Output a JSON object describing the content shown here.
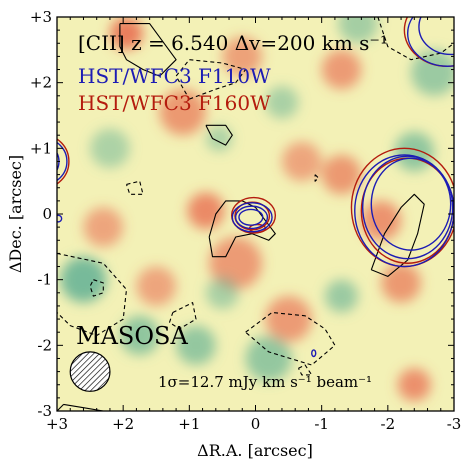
{
  "chart_data": {
    "type": "contour-map",
    "xlabel": "ΔR.A. [arcsec]",
    "ylabel": "ΔDec. [arcsec]",
    "xlim": [
      3,
      -3
    ],
    "ylim": [
      -3,
      3
    ],
    "x_ticks": [
      {
        "value": 3,
        "label": "+3"
      },
      {
        "value": 2,
        "label": "+2"
      },
      {
        "value": 1,
        "label": "+1"
      },
      {
        "value": 0,
        "label": "0"
      },
      {
        "value": -1,
        "label": "-1"
      },
      {
        "value": -2,
        "label": "-2"
      },
      {
        "value": -3,
        "label": "-3"
      }
    ],
    "y_ticks": [
      {
        "value": 3,
        "label": "+3"
      },
      {
        "value": 2,
        "label": "+2"
      },
      {
        "value": 1,
        "label": "+1"
      },
      {
        "value": 0,
        "label": "0"
      },
      {
        "value": -1,
        "label": "-1"
      },
      {
        "value": -2,
        "label": "-2"
      },
      {
        "value": -3,
        "label": "-3"
      }
    ],
    "legend": [
      {
        "text": "[CII] z = 6.540 Δv=200 km s⁻¹",
        "color": "#000000"
      },
      {
        "text": "HST/WFC3 F110W",
        "color": "#1c1cb4"
      },
      {
        "text": "HST/WFC3 F160W",
        "color": "#b41c0e"
      }
    ],
    "survey_label": "MASOSA",
    "noise_label": "1σ=12.7 mJy km s⁻¹ beam⁻¹",
    "colormap": {
      "low": "#58ad92",
      "mid": "#f3f1b6",
      "high": "#e8664b"
    },
    "colors": {
      "cii": "#000000",
      "f110w": "#1c1cb4",
      "f160w": "#b41c0e"
    },
    "beam": {
      "center": [
        2.5,
        -2.4
      ],
      "bmaj": 0.6,
      "bmin": 0.6
    },
    "blobs": [
      {
        "x": 1.95,
        "y": 2.75,
        "r": 0.25,
        "v": 0.9
      },
      {
        "x": 1.1,
        "y": 1.55,
        "r": 0.35,
        "v": 0.6
      },
      {
        "x": 0.75,
        "y": 0.05,
        "r": 0.28,
        "v": 0.75
      },
      {
        "x": 0.3,
        "y": -0.75,
        "r": 0.4,
        "v": 0.55
      },
      {
        "x": -0.5,
        "y": -1.6,
        "r": 0.35,
        "v": 0.55
      },
      {
        "x": -1.3,
        "y": 0.6,
        "r": 0.3,
        "v": 0.6
      },
      {
        "x": -1.9,
        "y": -0.1,
        "r": 0.3,
        "v": 0.65
      },
      {
        "x": -2.2,
        "y": -1.05,
        "r": 0.3,
        "v": 0.6
      },
      {
        "x": -2.4,
        "y": -2.6,
        "r": 0.25,
        "v": 0.7
      },
      {
        "x": -1.3,
        "y": 2.2,
        "r": 0.3,
        "v": 0.55
      },
      {
        "x": 0.2,
        "y": 2.4,
        "r": 0.3,
        "v": 0.5
      },
      {
        "x": -0.7,
        "y": 0.8,
        "r": 0.3,
        "v": 0.45
      },
      {
        "x": 1.5,
        "y": -1.1,
        "r": 0.3,
        "v": 0.45
      },
      {
        "x": 2.3,
        "y": -0.2,
        "r": 0.3,
        "v": 0.45
      },
      {
        "x": 2.6,
        "y": -1.0,
        "r": 0.35,
        "v": -0.85
      },
      {
        "x": 1.75,
        "y": -1.85,
        "r": 0.3,
        "v": -0.6
      },
      {
        "x": 0.9,
        "y": -2.0,
        "r": 0.3,
        "v": -0.55
      },
      {
        "x": -0.2,
        "y": -2.2,
        "r": 0.35,
        "v": -0.55
      },
      {
        "x": -2.4,
        "y": 0.95,
        "r": 0.3,
        "v": -0.6
      },
      {
        "x": -2.7,
        "y": 2.15,
        "r": 0.35,
        "v": -0.5
      },
      {
        "x": -1.3,
        "y": -1.25,
        "r": 0.25,
        "v": -0.5
      },
      {
        "x": -0.4,
        "y": 1.7,
        "r": 0.25,
        "v": -0.35
      },
      {
        "x": -1.55,
        "y": 2.9,
        "r": 0.3,
        "v": -0.4
      },
      {
        "x": 0.55,
        "y": 1.15,
        "r": 0.2,
        "v": -0.3
      },
      {
        "x": 0.5,
        "y": -1.2,
        "r": 0.25,
        "v": -0.35
      },
      {
        "x": 2.2,
        "y": 1.0,
        "r": 0.3,
        "v": -0.3
      }
    ],
    "cii_contours": [
      {
        "style": "solid",
        "points": [
          [
            2.05,
            2.9
          ],
          [
            1.6,
            2.9
          ],
          [
            1.2,
            2.35
          ],
          [
            1.45,
            2.1
          ],
          [
            1.7,
            2.2
          ],
          [
            1.95,
            2.35
          ],
          [
            2.05,
            2.55
          ],
          [
            2.05,
            2.9
          ]
        ]
      },
      {
        "style": "solid",
        "points": [
          [
            2.9,
            -2.9
          ],
          [
            2.6,
            -2.95
          ],
          [
            2.3,
            -3.0
          ],
          [
            3.0,
            -3.0
          ],
          [
            2.9,
            -2.9
          ]
        ]
      },
      {
        "style": "solid",
        "points": [
          [
            0.75,
            1.35
          ],
          [
            0.65,
            1.15
          ],
          [
            0.45,
            1.05
          ],
          [
            0.35,
            1.2
          ],
          [
            0.45,
            1.35
          ],
          [
            0.75,
            1.35
          ]
        ]
      },
      {
        "style": "solid",
        "points": [
          [
            0.7,
            -0.35
          ],
          [
            0.6,
            0.0
          ],
          [
            0.45,
            0.2
          ],
          [
            0.2,
            0.2
          ],
          [
            0.0,
            0.1
          ],
          [
            -0.15,
            -0.1
          ],
          [
            -0.3,
            -0.3
          ],
          [
            -0.2,
            -0.4
          ],
          [
            0.05,
            -0.3
          ],
          [
            0.3,
            -0.35
          ],
          [
            0.45,
            -0.65
          ],
          [
            0.65,
            -0.65
          ],
          [
            0.7,
            -0.35
          ]
        ]
      },
      {
        "style": "solid",
        "points": [
          [
            -1.75,
            -0.85
          ],
          [
            -1.95,
            -0.3
          ],
          [
            -2.2,
            0.1
          ],
          [
            -2.4,
            0.3
          ],
          [
            -2.55,
            0.15
          ],
          [
            -2.45,
            -0.3
          ],
          [
            -2.3,
            -0.7
          ],
          [
            -2.0,
            -0.95
          ],
          [
            -1.75,
            -0.85
          ]
        ]
      },
      {
        "style": "dashed",
        "points": [
          [
            1.0,
            1.75
          ],
          [
            0.6,
            1.9
          ],
          [
            0.3,
            2.0
          ],
          [
            0.15,
            2.2
          ],
          [
            0.5,
            2.3
          ],
          [
            1.0,
            2.35
          ],
          [
            1.2,
            2.1
          ],
          [
            1.0,
            1.75
          ]
        ]
      },
      {
        "style": "dashed",
        "points": [
          [
            -1.85,
            3.0
          ],
          [
            -2.0,
            2.55
          ],
          [
            -2.35,
            2.35
          ],
          [
            -2.8,
            2.45
          ],
          [
            -3.0,
            2.6
          ]
        ]
      },
      {
        "style": "dashed",
        "points": [
          [
            1.95,
            0.45
          ],
          [
            1.75,
            0.5
          ],
          [
            1.7,
            0.3
          ],
          [
            1.9,
            0.3
          ],
          [
            1.95,
            0.45
          ]
        ]
      },
      {
        "style": "dashed",
        "points": [
          [
            -0.9,
            0.6
          ],
          [
            -0.95,
            0.55
          ],
          [
            -0.9,
            0.5
          ],
          [
            -0.9,
            0.6
          ]
        ]
      },
      {
        "style": "dashed",
        "points": [
          [
            3.0,
            -0.6
          ],
          [
            2.3,
            -0.75
          ],
          [
            1.95,
            -1.15
          ],
          [
            2.0,
            -1.6
          ],
          [
            2.4,
            -1.85
          ],
          [
            2.8,
            -1.7
          ],
          [
            3.0,
            -1.5
          ]
        ]
      },
      {
        "style": "dashed",
        "points": [
          [
            2.45,
            -1.0
          ],
          [
            2.3,
            -1.05
          ],
          [
            2.3,
            -1.2
          ],
          [
            2.45,
            -1.25
          ],
          [
            2.5,
            -1.1
          ],
          [
            2.45,
            -1.0
          ]
        ]
      },
      {
        "style": "dashed",
        "points": [
          [
            1.25,
            -1.5
          ],
          [
            0.95,
            -1.35
          ],
          [
            0.9,
            -1.6
          ],
          [
            1.15,
            -1.75
          ],
          [
            1.3,
            -1.65
          ],
          [
            1.25,
            -1.5
          ]
        ]
      },
      {
        "style": "dashed",
        "points": [
          [
            0.15,
            -1.8
          ],
          [
            -0.25,
            -1.5
          ],
          [
            -0.75,
            -1.55
          ],
          [
            -1.05,
            -1.75
          ],
          [
            -1.2,
            -2.0
          ],
          [
            -0.85,
            -2.3
          ],
          [
            -0.2,
            -2.1
          ],
          [
            0.15,
            -1.8
          ]
        ]
      },
      {
        "style": "dashed",
        "points": [
          [
            -0.65,
            -2.35
          ],
          [
            -0.75,
            -2.3
          ],
          [
            -0.85,
            -2.45
          ],
          [
            -0.7,
            -2.45
          ],
          [
            -0.65,
            -2.35
          ]
        ]
      }
    ],
    "hst_f110w": [
      {
        "cx": 0.05,
        "cy": -0.05,
        "rx": 0.3,
        "ry": 0.22
      },
      {
        "cx": 0.06,
        "cy": -0.05,
        "rx": 0.24,
        "ry": 0.17
      },
      {
        "cx": 0.07,
        "cy": -0.05,
        "rx": 0.18,
        "ry": 0.12
      },
      {
        "cx": -2.25,
        "cy": 0.05,
        "rx": 0.75,
        "ry": 0.85
      },
      {
        "cx": -2.3,
        "cy": 0.1,
        "rx": 0.68,
        "ry": 0.78
      },
      {
        "cx": -2.35,
        "cy": 0.15,
        "rx": 0.6,
        "ry": 0.7
      },
      {
        "cx": -2.9,
        "cy": 2.75,
        "rx": 0.6,
        "ry": 0.5
      },
      {
        "cx": -2.95,
        "cy": 2.85,
        "rx": 0.48,
        "ry": 0.42
      },
      {
        "cx": 3.2,
        "cy": 0.8,
        "rx": 0.35,
        "ry": 0.35
      },
      {
        "cx": 3.25,
        "cy": 0.8,
        "rx": 0.28,
        "ry": 0.28
      },
      {
        "cx": 2.98,
        "cy": -0.07,
        "rx": 0.05,
        "ry": 0.05
      },
      {
        "cx": -0.88,
        "cy": -2.12,
        "rx": 0.03,
        "ry": 0.05
      }
    ],
    "hst_f160w": [
      {
        "cx": 0.03,
        "cy": -0.02,
        "rx": 0.33,
        "ry": 0.27
      },
      {
        "cx": 0.05,
        "cy": -0.03,
        "rx": 0.26,
        "ry": 0.21
      },
      {
        "cx": -0.03,
        "cy": -0.22,
        "rx": 0.12,
        "ry": 0.06
      },
      {
        "cx": -2.25,
        "cy": 0.1,
        "rx": 0.8,
        "ry": 0.9
      },
      {
        "cx": -2.3,
        "cy": 0.05,
        "rx": 0.7,
        "ry": 0.8
      },
      {
        "cx": -2.9,
        "cy": 2.8,
        "rx": 0.65,
        "ry": 0.55
      },
      {
        "cx": 3.2,
        "cy": 0.8,
        "rx": 0.38,
        "ry": 0.4
      }
    ]
  }
}
